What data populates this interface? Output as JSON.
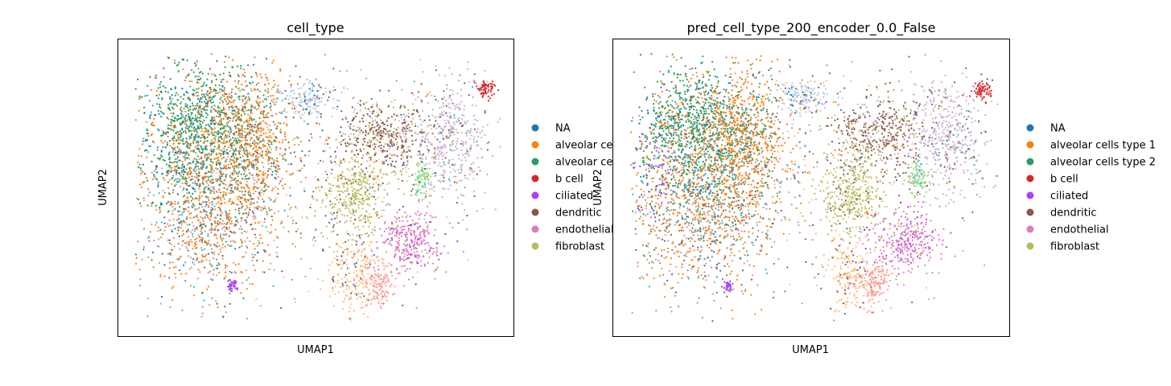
{
  "chart_data": [
    {
      "type": "scatter",
      "title": "cell_type",
      "xlabel": "UMAP1",
      "ylabel": "UMAP2",
      "grid": false,
      "ticks": false,
      "legend": {
        "placement": "right-outside",
        "entries": [
          {
            "label": "NA",
            "color": "#1f77b4"
          },
          {
            "label": "alveolar ce",
            "color": "#ff7f0e"
          },
          {
            "label": "alveolar ce",
            "color": "#279e68"
          },
          {
            "label": "b cell",
            "color": "#d62728"
          },
          {
            "label": "ciliated",
            "color": "#aa40fc"
          },
          {
            "label": "dendritic",
            "color": "#8c564b"
          },
          {
            "label": "endothelial",
            "color": "#e377c2"
          },
          {
            "label": "fibroblast",
            "color": "#b5bd61"
          }
        ]
      }
    },
    {
      "type": "scatter",
      "title": "pred_cell_type_200_encoder_0.0_False",
      "xlabel": "UMAP1",
      "ylabel": "UMAP2",
      "grid": false,
      "ticks": false,
      "legend": {
        "placement": "right-outside",
        "entries": [
          {
            "label": "NA",
            "color": "#1f77b4"
          },
          {
            "label": "alveolar cells type 1",
            "color": "#ff7f0e"
          },
          {
            "label": "alveolar cells type 2",
            "color": "#279e68"
          },
          {
            "label": "b cell",
            "color": "#d62728"
          },
          {
            "label": "ciliated",
            "color": "#aa40fc"
          },
          {
            "label": "dendritic",
            "color": "#8c564b"
          },
          {
            "label": "endothelial",
            "color": "#e377c2"
          },
          {
            "label": "fibroblast",
            "color": "#b5bd61"
          }
        ]
      }
    }
  ],
  "extra_cluster_colors": [
    "#aec7e8",
    "#ffbb78",
    "#98df8a",
    "#ff9896",
    "#c5b0d5",
    "#c49c94",
    "#17becf",
    "#dbdb8d"
  ]
}
